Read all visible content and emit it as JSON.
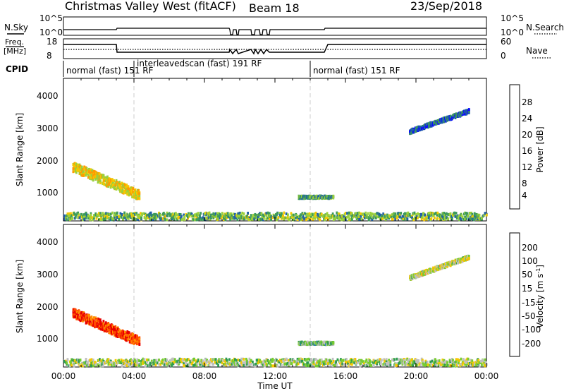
{
  "header": {
    "title": "Christmas Valley West (fitACF)",
    "beam": "Beam 18",
    "date": "23/Sep/2018"
  },
  "top_panels": {
    "nsky_label": "N.Sky",
    "nsky_ticks": [
      "10^5",
      "10^0"
    ],
    "nsearch_label": "N.Search",
    "nsearch_ticks": [
      "10^5",
      "10^0"
    ],
    "freq_label_1": "Freq.",
    "freq_label_2": "[MHz]",
    "freq_ticks": [
      "18",
      "8"
    ],
    "nave_label": "Nave",
    "nave_ticks": [
      "60",
      "0"
    ],
    "cpid_label": "CPID",
    "cpid_segments": [
      {
        "label": "normal (fast) 151 RF",
        "start_hour": 0
      },
      {
        "label": "interleavedscan (fast) 191 RF",
        "start_hour": 4
      },
      {
        "label": "normal (fast) 151 RF",
        "start_hour": 14
      }
    ]
  },
  "power_panel": {
    "ylabel": "Slant Range [km]",
    "yticks": [
      "4000",
      "3000",
      "2000",
      "1000"
    ],
    "colorbar_label": "Power [dB]",
    "colorbar_ticks": [
      "28",
      "24",
      "20",
      "16",
      "12",
      "8",
      "4"
    ],
    "colorbar_colors": [
      "#e60000",
      "#ff5a00",
      "#ff9a00",
      "#f5c800",
      "#9ad03c",
      "#3d9a5a",
      "#2060a8",
      "#0a0aff"
    ]
  },
  "velocity_panel": {
    "ylabel": "Slant Range [km]",
    "yticks": [
      "4000",
      "3000",
      "2000",
      "1000"
    ],
    "colorbar_label": "Velocity [m s",
    "colorbar_label_sup": "-1",
    "colorbar_label_end": "]",
    "colorbar_ticks": [
      "200",
      "100",
      "50",
      "15",
      "-15",
      "-50",
      "-100",
      "-200"
    ],
    "colorbar_colors": [
      "#1530b0",
      "#2878c8",
      "#2e9a50",
      "#78cc30",
      "#c0c0c0",
      "#f5c800",
      "#ff9000",
      "#ff4a00",
      "#e80000"
    ]
  },
  "xaxis": {
    "label": "Time UT",
    "ticks": [
      "00:00",
      "04:00",
      "08:00",
      "12:00",
      "16:00",
      "20:00",
      "00:00"
    ]
  },
  "chart_data": [
    {
      "type": "heatmap",
      "name": "power",
      "xlabel": "Time UT",
      "ylabel": "Slant Range [km]",
      "xlim_hours": [
        0,
        24
      ],
      "ylim_km": [
        180,
        4600
      ],
      "zlabel": "Power [dB]",
      "zlim": [
        0,
        32
      ],
      "regions": [
        {
          "t0": 0.5,
          "t1": 4.3,
          "r0": 1850,
          "r1": 950,
          "width_km": 300,
          "value": 18
        },
        {
          "t0": 13.3,
          "t1": 15.3,
          "r0": 900,
          "r1": 900,
          "width_km": 80,
          "value": 10
        },
        {
          "t0": 19.6,
          "t1": 23.0,
          "r0": 2950,
          "r1": 3600,
          "width_km": 120,
          "value": 6
        },
        {
          "t0": 0.0,
          "t1": 24.0,
          "r0": 300,
          "r1": 300,
          "width_km": 220,
          "value": 12
        }
      ]
    },
    {
      "type": "heatmap",
      "name": "velocity",
      "xlabel": "Time UT",
      "ylabel": "Slant Range [km]",
      "xlim_hours": [
        0,
        24
      ],
      "ylim_km": [
        180,
        4600
      ],
      "zlabel": "Velocity [m s-1]",
      "zlim": [
        -250,
        250
      ],
      "regions": [
        {
          "t0": 0.5,
          "t1": 4.3,
          "r0": 1850,
          "r1": 950,
          "width_km": 300,
          "value": -180
        },
        {
          "t0": 13.3,
          "t1": 15.3,
          "r0": 900,
          "r1": 900,
          "width_km": 80,
          "value": 60
        },
        {
          "t0": 19.6,
          "t1": 23.0,
          "r0": 2950,
          "r1": 3600,
          "width_km": 120,
          "value": 0
        },
        {
          "t0": 0.0,
          "t1": 24.0,
          "r0": 300,
          "r1": 300,
          "width_km": 220,
          "value": 30
        }
      ]
    }
  ]
}
